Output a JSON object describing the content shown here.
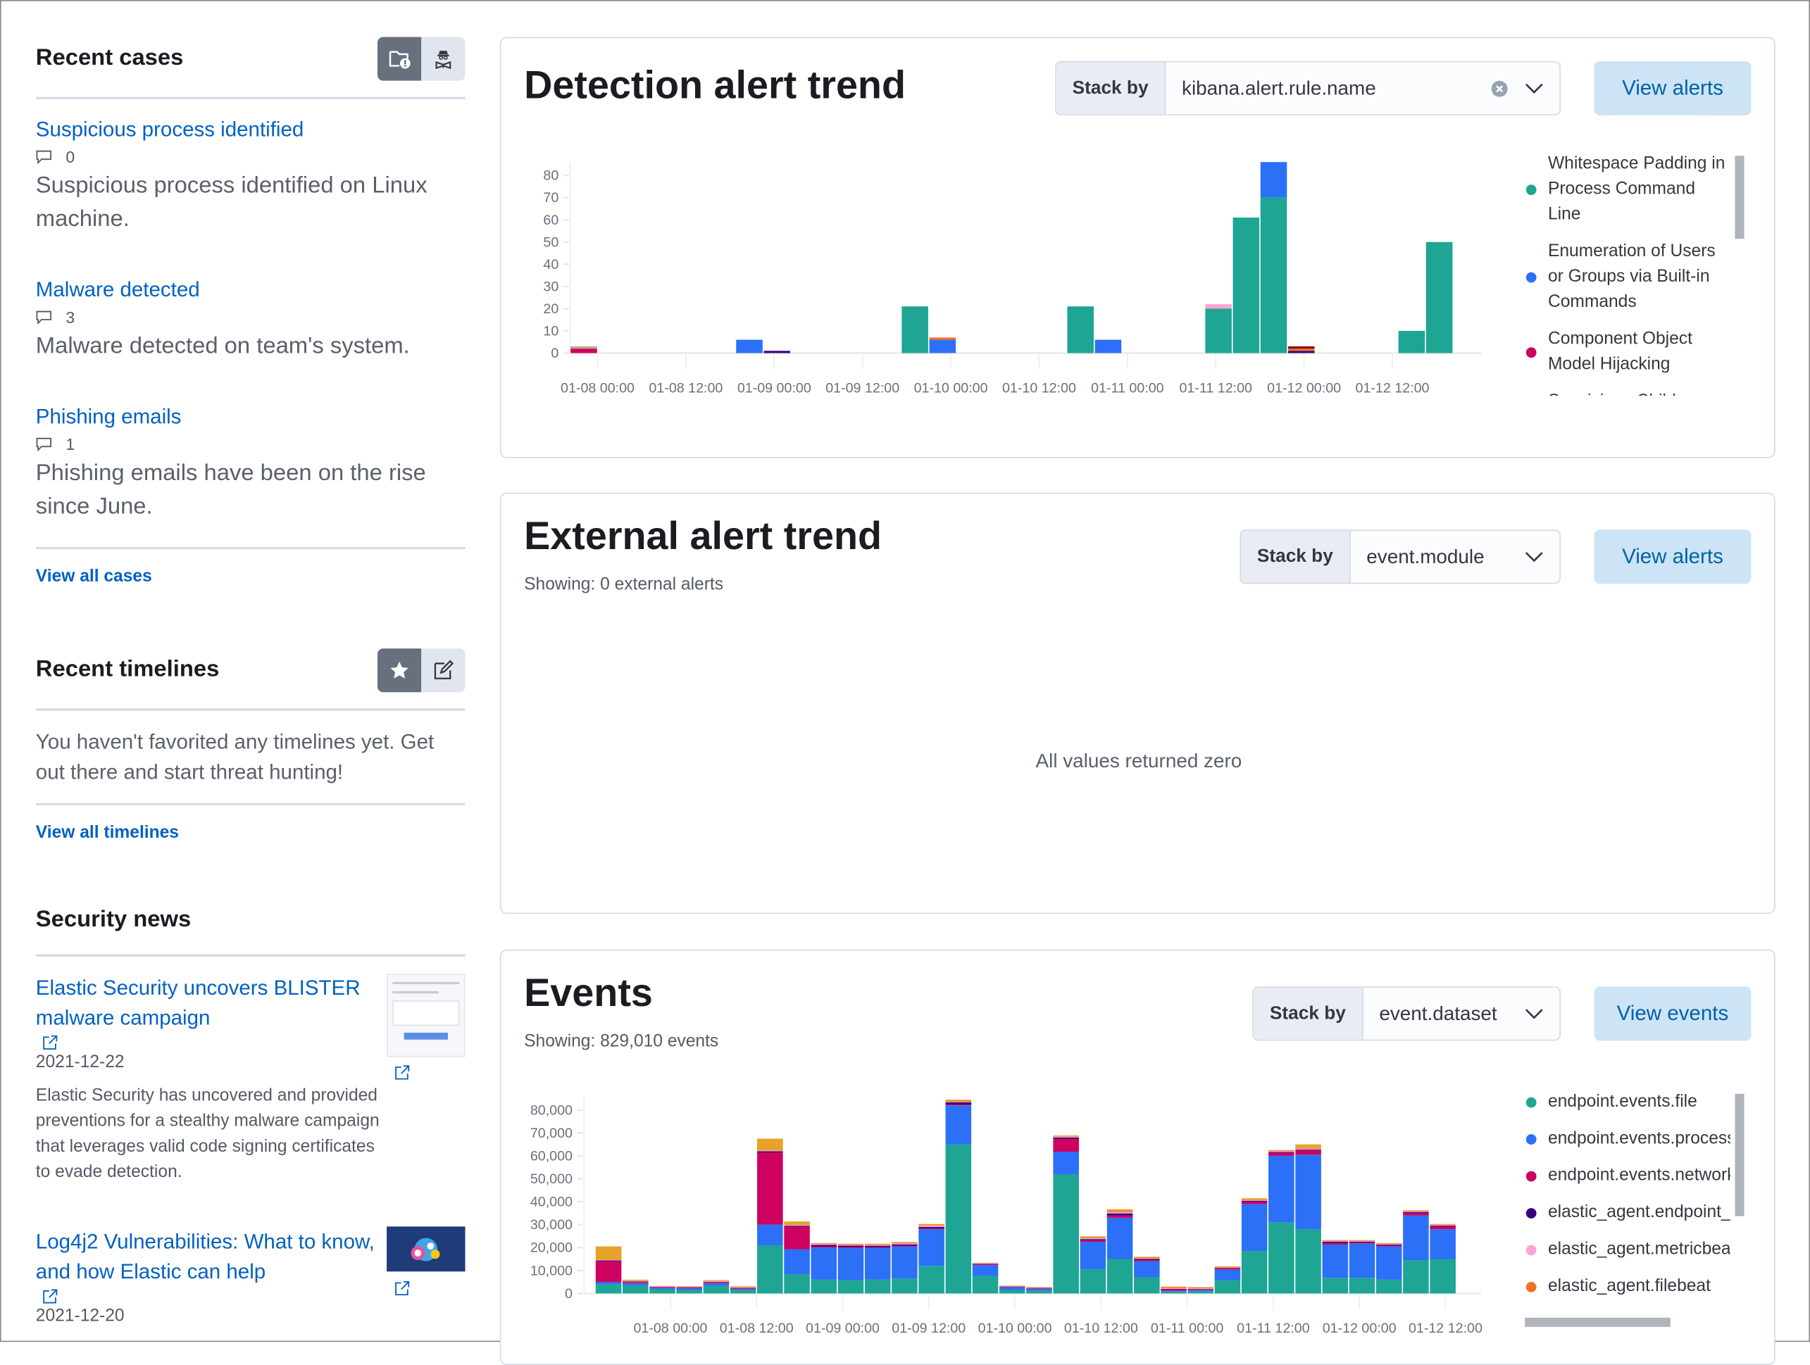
{
  "recent_cases": {
    "title": "Recent cases",
    "items": [
      {
        "title": "Suspicious process identified",
        "comments": "0",
        "description": "Suspicious process identified on Linux machine."
      },
      {
        "title": "Malware detected",
        "comments": "3",
        "description": "Malware detected on team's system."
      },
      {
        "title": "Phishing emails",
        "comments": "1",
        "description": "Phishing emails have been on the rise since June."
      }
    ],
    "view_all": "View all cases"
  },
  "recent_timelines": {
    "title": "Recent timelines",
    "empty_text": "You haven't favorited any timelines yet. Get out there and start threat hunting!",
    "view_all": "View all timelines"
  },
  "security_news": {
    "title": "Security news",
    "items": [
      {
        "title": "Elastic Security uncovers BLISTER malware campaign",
        "date": "2021-12-22",
        "description": "Elastic Security has uncovered and provided preventions for a stealthy malware campaign that leverages valid code signing certificates to evade detection."
      },
      {
        "title": "Log4j2 Vulnerabilities: What to know, and how Elastic can help",
        "date": "2021-12-20"
      }
    ]
  },
  "detection": {
    "title": "Detection alert trend",
    "stack_by_label": "Stack by",
    "stack_by_value": "kibana.alert.rule.name",
    "view_button": "View alerts",
    "legend": [
      {
        "label": "Whitespace Padding in Process Command Line",
        "color": "#1ea593"
      },
      {
        "label": "Enumeration of Users or Groups via Built-in Commands",
        "color": "#2b70f7"
      },
      {
        "label": "Component Object Model Hijacking",
        "color": "#ce0060"
      },
      {
        "label": "Suspicious Child",
        "color": "#38007e"
      }
    ]
  },
  "external": {
    "title": "External alert trend",
    "showing": "Showing: 0 external alerts",
    "stack_by_label": "Stack by",
    "stack_by_value": "event.module",
    "view_button": "View alerts",
    "empty_message": "All values returned zero"
  },
  "events": {
    "title": "Events",
    "showing": "Showing: 829,010 events",
    "stack_by_label": "Stack by",
    "stack_by_value": "event.dataset",
    "view_button": "View events",
    "legend": [
      {
        "label": "endpoint.events.file",
        "color": "#1ea593"
      },
      {
        "label": "endpoint.events.process",
        "color": "#2b70f7"
      },
      {
        "label": "endpoint.events.network",
        "color": "#ce0060"
      },
      {
        "label": "elastic_agent.endpoint_security",
        "color": "#38007e"
      },
      {
        "label": "elastic_agent.metricbeat",
        "color": "#fca5d3"
      },
      {
        "label": "elastic_agent.filebeat",
        "color": "#f37020"
      }
    ]
  },
  "chart_data": [
    {
      "type": "bar",
      "stacked": true,
      "ylim": [
        0,
        86
      ],
      "yticks": [
        0,
        10,
        20,
        30,
        40,
        50,
        60,
        70,
        80
      ],
      "xticks": [
        "01-08 00:00",
        "01-08 12:00",
        "01-09 00:00",
        "01-09 12:00",
        "01-10 00:00",
        "01-10 12:00",
        "01-11 00:00",
        "01-11 12:00",
        "01-12 00:00",
        "01-12 12:00"
      ],
      "legend": "right",
      "series": [
        {
          "name": "Whitespace Padding in Process Command Line",
          "color": "#1ea593",
          "points": [
            [
              "01-09 17:15",
              21
            ],
            [
              "01-10 15:45",
              21
            ],
            [
              "01-11 10:30",
              20
            ],
            [
              "01-11 14:15",
              61
            ],
            [
              "01-11 18:00",
              70
            ],
            [
              "01-12 12:45",
              10
            ],
            [
              "01-12 16:30",
              50
            ]
          ]
        },
        {
          "name": "Enumeration of Users or Groups via Built-in Commands",
          "color": "#2b70f7",
          "points": [
            [
              "01-08 18:45",
              6
            ],
            [
              "01-09 21:00",
              6
            ],
            [
              "01-10 19:30",
              6
            ],
            [
              "01-11 18:00",
              16
            ]
          ]
        },
        {
          "name": "Component Object Model Hijacking",
          "color": "#ce0060",
          "points": [
            [
              "01-07 20:15",
              2
            ]
          ]
        },
        {
          "color": "#38007e",
          "points": [
            [
              "01-08 22:30",
              1
            ],
            [
              "01-11 21:45",
              1
            ]
          ]
        },
        {
          "color": "#f37020",
          "points": [
            [
              "01-09 21:00",
              1
            ],
            [
              "01-11 21:45",
              1
            ]
          ]
        },
        {
          "color": "#fca5d3",
          "points": [
            [
              "01-11 10:30",
              2
            ]
          ]
        },
        {
          "color": "#b9a888",
          "points": [
            [
              "01-07 20:15",
              1
            ]
          ]
        },
        {
          "color": "#7e0012",
          "points": [
            [
              "01-11 21:45",
              1
            ]
          ]
        }
      ]
    },
    {
      "type": "bar",
      "stacked": true,
      "ylim": [
        0,
        86000
      ],
      "yticks": [
        0,
        10000,
        20000,
        30000,
        40000,
        50000,
        60000,
        70000,
        80000
      ],
      "ytick_labels": [
        "0",
        "10,000",
        "20,000",
        "30,000",
        "40,000",
        "50,000",
        "60,000",
        "70,000",
        "80,000"
      ],
      "xticks": [
        "01-08 00:00",
        "01-08 12:00",
        "01-09 00:00",
        "01-09 12:00",
        "01-10 00:00",
        "01-10 12:00",
        "01-11 00:00",
        "01-11 12:00",
        "01-12 00:00",
        "01-12 12:00"
      ],
      "legend": "right",
      "x": [
        "01-07 13:30",
        "01-07 17:15",
        "01-07 21:00",
        "01-08 00:45",
        "01-08 04:30",
        "01-08 08:15",
        "01-08 12:00",
        "01-08 15:45",
        "01-08 19:30",
        "01-08 23:15",
        "01-09 03:00",
        "01-09 06:45",
        "01-09 10:30",
        "01-09 14:15",
        "01-09 18:00",
        "01-09 21:45",
        "01-10 01:30",
        "01-10 05:15",
        "01-10 09:00",
        "01-10 12:45",
        "01-10 16:30",
        "01-10 20:15",
        "01-11 00:00",
        "01-11 03:45",
        "01-11 07:30",
        "01-11 11:15",
        "01-11 15:00",
        "01-11 18:45",
        "01-11 22:30",
        "01-12 02:15",
        "01-12 06:00",
        "01-12 09:45"
      ],
      "series": [
        {
          "name": "endpoint.events.file",
          "color": "#1ea593",
          "values": [
            4000,
            3500,
            1800,
            1500,
            3300,
            1500,
            21000,
            8300,
            6000,
            5800,
            6000,
            6500,
            12000,
            65000,
            7600,
            1500,
            1200,
            52000,
            10500,
            15000,
            7000,
            800,
            1000,
            5800,
            18500,
            31000,
            28000,
            6800,
            6800,
            6000,
            14500,
            15000
          ]
        },
        {
          "name": "endpoint.events.process",
          "color": "#2b70f7",
          "values": [
            1000,
            1000,
            700,
            800,
            1200,
            500,
            9000,
            11000,
            14000,
            14000,
            13800,
            14000,
            16000,
            17000,
            4700,
            1200,
            800,
            9800,
            12000,
            18000,
            7000,
            400,
            500,
            4500,
            20500,
            29000,
            32500,
            14500,
            15000,
            14500,
            19500,
            13000
          ]
        },
        {
          "name": "endpoint.events.network",
          "color": "#ce0060",
          "values": [
            9000,
            500,
            300,
            400,
            500,
            400,
            31500,
            9800,
            500,
            400,
            300,
            300,
            300,
            300,
            300,
            200,
            300,
            5500,
            700,
            1000,
            500,
            600,
            400,
            500,
            1000,
            1300,
            1800,
            700,
            400,
            400,
            1000,
            1300
          ]
        },
        {
          "name": "elastic_agent.endpoint_security",
          "color": "#38007e",
          "values": [
            400,
            200,
            100,
            100,
            100,
            100,
            500,
            400,
            700,
            700,
            700,
            600,
            700,
            1000,
            300,
            100,
            100,
            700,
            500,
            900,
            500,
            200,
            100,
            300,
            400,
            400,
            400,
            600,
            400,
            400,
            500,
            300
          ]
        },
        {
          "name": "elastic_agent.metricbeat",
          "color": "#fca5d3",
          "values": [
            200,
            200,
            200,
            200,
            200,
            200,
            300,
            300,
            500,
            300,
            400,
            500,
            500,
            200,
            200,
            100,
            200,
            300,
            400,
            600,
            300,
            300,
            300,
            200,
            300,
            400,
            400,
            300,
            300,
            300,
            300,
            300
          ]
        },
        {
          "name": "elastic_agent.filebeat",
          "color": "#f37020",
          "values": [
            100,
            100,
            100,
            100,
            100,
            100,
            200,
            200,
            200,
            300,
            300,
            300,
            300,
            400,
            100,
            100,
            100,
            200,
            300,
            500,
            300,
            400,
            300,
            300,
            300,
            300,
            300,
            200,
            200,
            200,
            300,
            200
          ]
        },
        {
          "color": "#e6a229",
          "values": [
            5800,
            500,
            100,
            100,
            400,
            300,
            5000,
            1400,
            100,
            200,
            200,
            200,
            500,
            600,
            200,
            200,
            100,
            400,
            500,
            700,
            400,
            300,
            200,
            200,
            500,
            100,
            1600,
            200,
            200,
            200,
            200,
            200
          ]
        }
      ]
    }
  ]
}
